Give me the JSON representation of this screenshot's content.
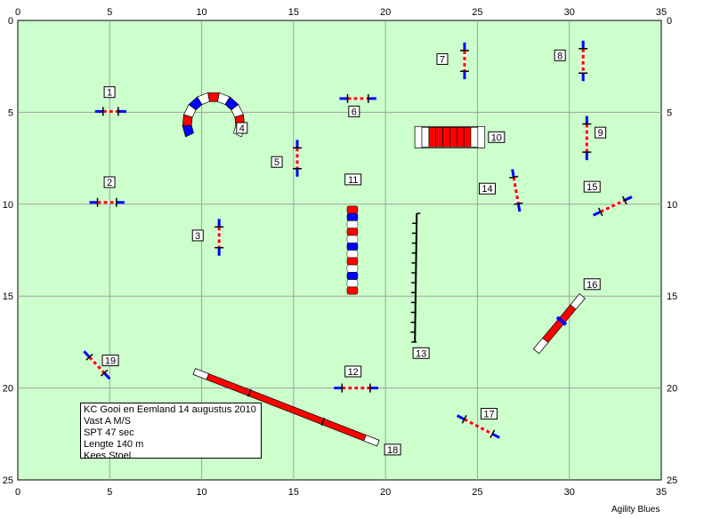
{
  "info": {
    "event": "KC Gooi en Eemland 14 augustus 2010",
    "class": "Vast A M/S",
    "spt": "SPT 47 sec",
    "length": "Lengte 140 m",
    "judge": "Kees Stoel"
  },
  "brand": "Agility Blues",
  "axis": {
    "x_ticks": [
      "0",
      "5",
      "10",
      "15",
      "20",
      "25",
      "30",
      "35"
    ],
    "y_ticks": [
      "0",
      "5",
      "10",
      "15",
      "20",
      "25"
    ],
    "x_range": [
      0,
      35
    ],
    "y_range": [
      0,
      25
    ]
  },
  "colors": {
    "field": "#ccffcc",
    "grid": "#a0a0a0",
    "pole_red": "#ff0000",
    "pole_blue": "#0000ff",
    "white": "#ffffff"
  },
  "obstacles": [
    {
      "num": "1",
      "type": "jump",
      "x1": 4.2,
      "y1": 4.95,
      "x2": 5.9,
      "y2": 4.95,
      "lx": 4.7,
      "ly": 3.9
    },
    {
      "num": "2",
      "type": "jump",
      "x1": 3.9,
      "y1": 9.9,
      "x2": 5.8,
      "y2": 9.9,
      "lx": 4.7,
      "ly": 8.8
    },
    {
      "num": "3",
      "type": "jump",
      "x1": 10.95,
      "y1": 10.8,
      "x2": 10.95,
      "y2": 12.8,
      "lx": 9.5,
      "ly": 11.7
    },
    {
      "num": "4",
      "type": "tunnel_curve",
      "cx": 10.65,
      "cy": 5.6,
      "r": 1.45,
      "lx": 11.9,
      "ly": 5.85
    },
    {
      "num": "5",
      "type": "jump",
      "x1": 15.2,
      "y1": 6.5,
      "x2": 15.2,
      "y2": 8.5,
      "lx": 13.8,
      "ly": 7.7
    },
    {
      "num": "6",
      "type": "jump",
      "x1": 17.5,
      "y1": 4.25,
      "x2": 19.5,
      "y2": 4.25,
      "lx": 18.0,
      "ly": 4.95
    },
    {
      "num": "7",
      "type": "jump",
      "x1": 24.3,
      "y1": 1.2,
      "x2": 24.3,
      "y2": 3.2,
      "lx": 22.8,
      "ly": 2.1
    },
    {
      "num": "8",
      "type": "jump",
      "x1": 30.75,
      "y1": 1.1,
      "x2": 30.75,
      "y2": 3.3,
      "lx": 29.2,
      "ly": 1.9
    },
    {
      "num": "9",
      "type": "jump",
      "x1": 30.95,
      "y1": 5.2,
      "x2": 30.95,
      "y2": 7.6,
      "lx": 31.4,
      "ly": 6.1
    },
    {
      "num": "10",
      "type": "tunnel_straight",
      "x1": 21.6,
      "x2": 25.4,
      "y": 6.35,
      "lx": 25.6,
      "ly": 6.35
    },
    {
      "num": "11",
      "type": "weave",
      "x": 18.2,
      "y1": 10.1,
      "y2": 14.9,
      "lx": 17.8,
      "ly": 8.65
    },
    {
      "num": "12",
      "type": "jump",
      "x1": 17.2,
      "y1": 20.0,
      "x2": 19.6,
      "y2": 20.0,
      "lx": 17.8,
      "ly": 19.1
    },
    {
      "num": "13",
      "type": "weave_poles",
      "x1": 21.7,
      "y1": 10.5,
      "x2": 21.6,
      "y2": 17.5,
      "lx": 21.5,
      "ly": 18.1
    },
    {
      "num": "14",
      "type": "jump",
      "x1": 26.9,
      "y1": 8.1,
      "x2": 27.3,
      "y2": 10.4,
      "lx": 25.1,
      "ly": 9.15
    },
    {
      "num": "15",
      "type": "jump",
      "x1": 31.3,
      "y1": 10.6,
      "x2": 33.4,
      "y2": 9.6,
      "lx": 30.8,
      "ly": 9.05
    },
    {
      "num": "16",
      "type": "seesaw",
      "x1": 28.2,
      "y1": 18.0,
      "x2": 30.7,
      "y2": 15.0,
      "lx": 30.8,
      "ly": 14.35
    },
    {
      "num": "17",
      "type": "jump",
      "x1": 23.9,
      "y1": 21.5,
      "x2": 26.2,
      "y2": 22.7,
      "lx": 25.2,
      "ly": 21.4
    },
    {
      "num": "18",
      "type": "dogwalk",
      "x1": 9.6,
      "y1": 19.1,
      "x2": 19.6,
      "y2": 23.0,
      "lx": 19.95,
      "ly": 23.35
    },
    {
      "num": "19",
      "type": "jump",
      "x1": 3.6,
      "y1": 18.0,
      "x2": 5.0,
      "y2": 19.5,
      "lx": 4.6,
      "ly": 18.5
    }
  ]
}
